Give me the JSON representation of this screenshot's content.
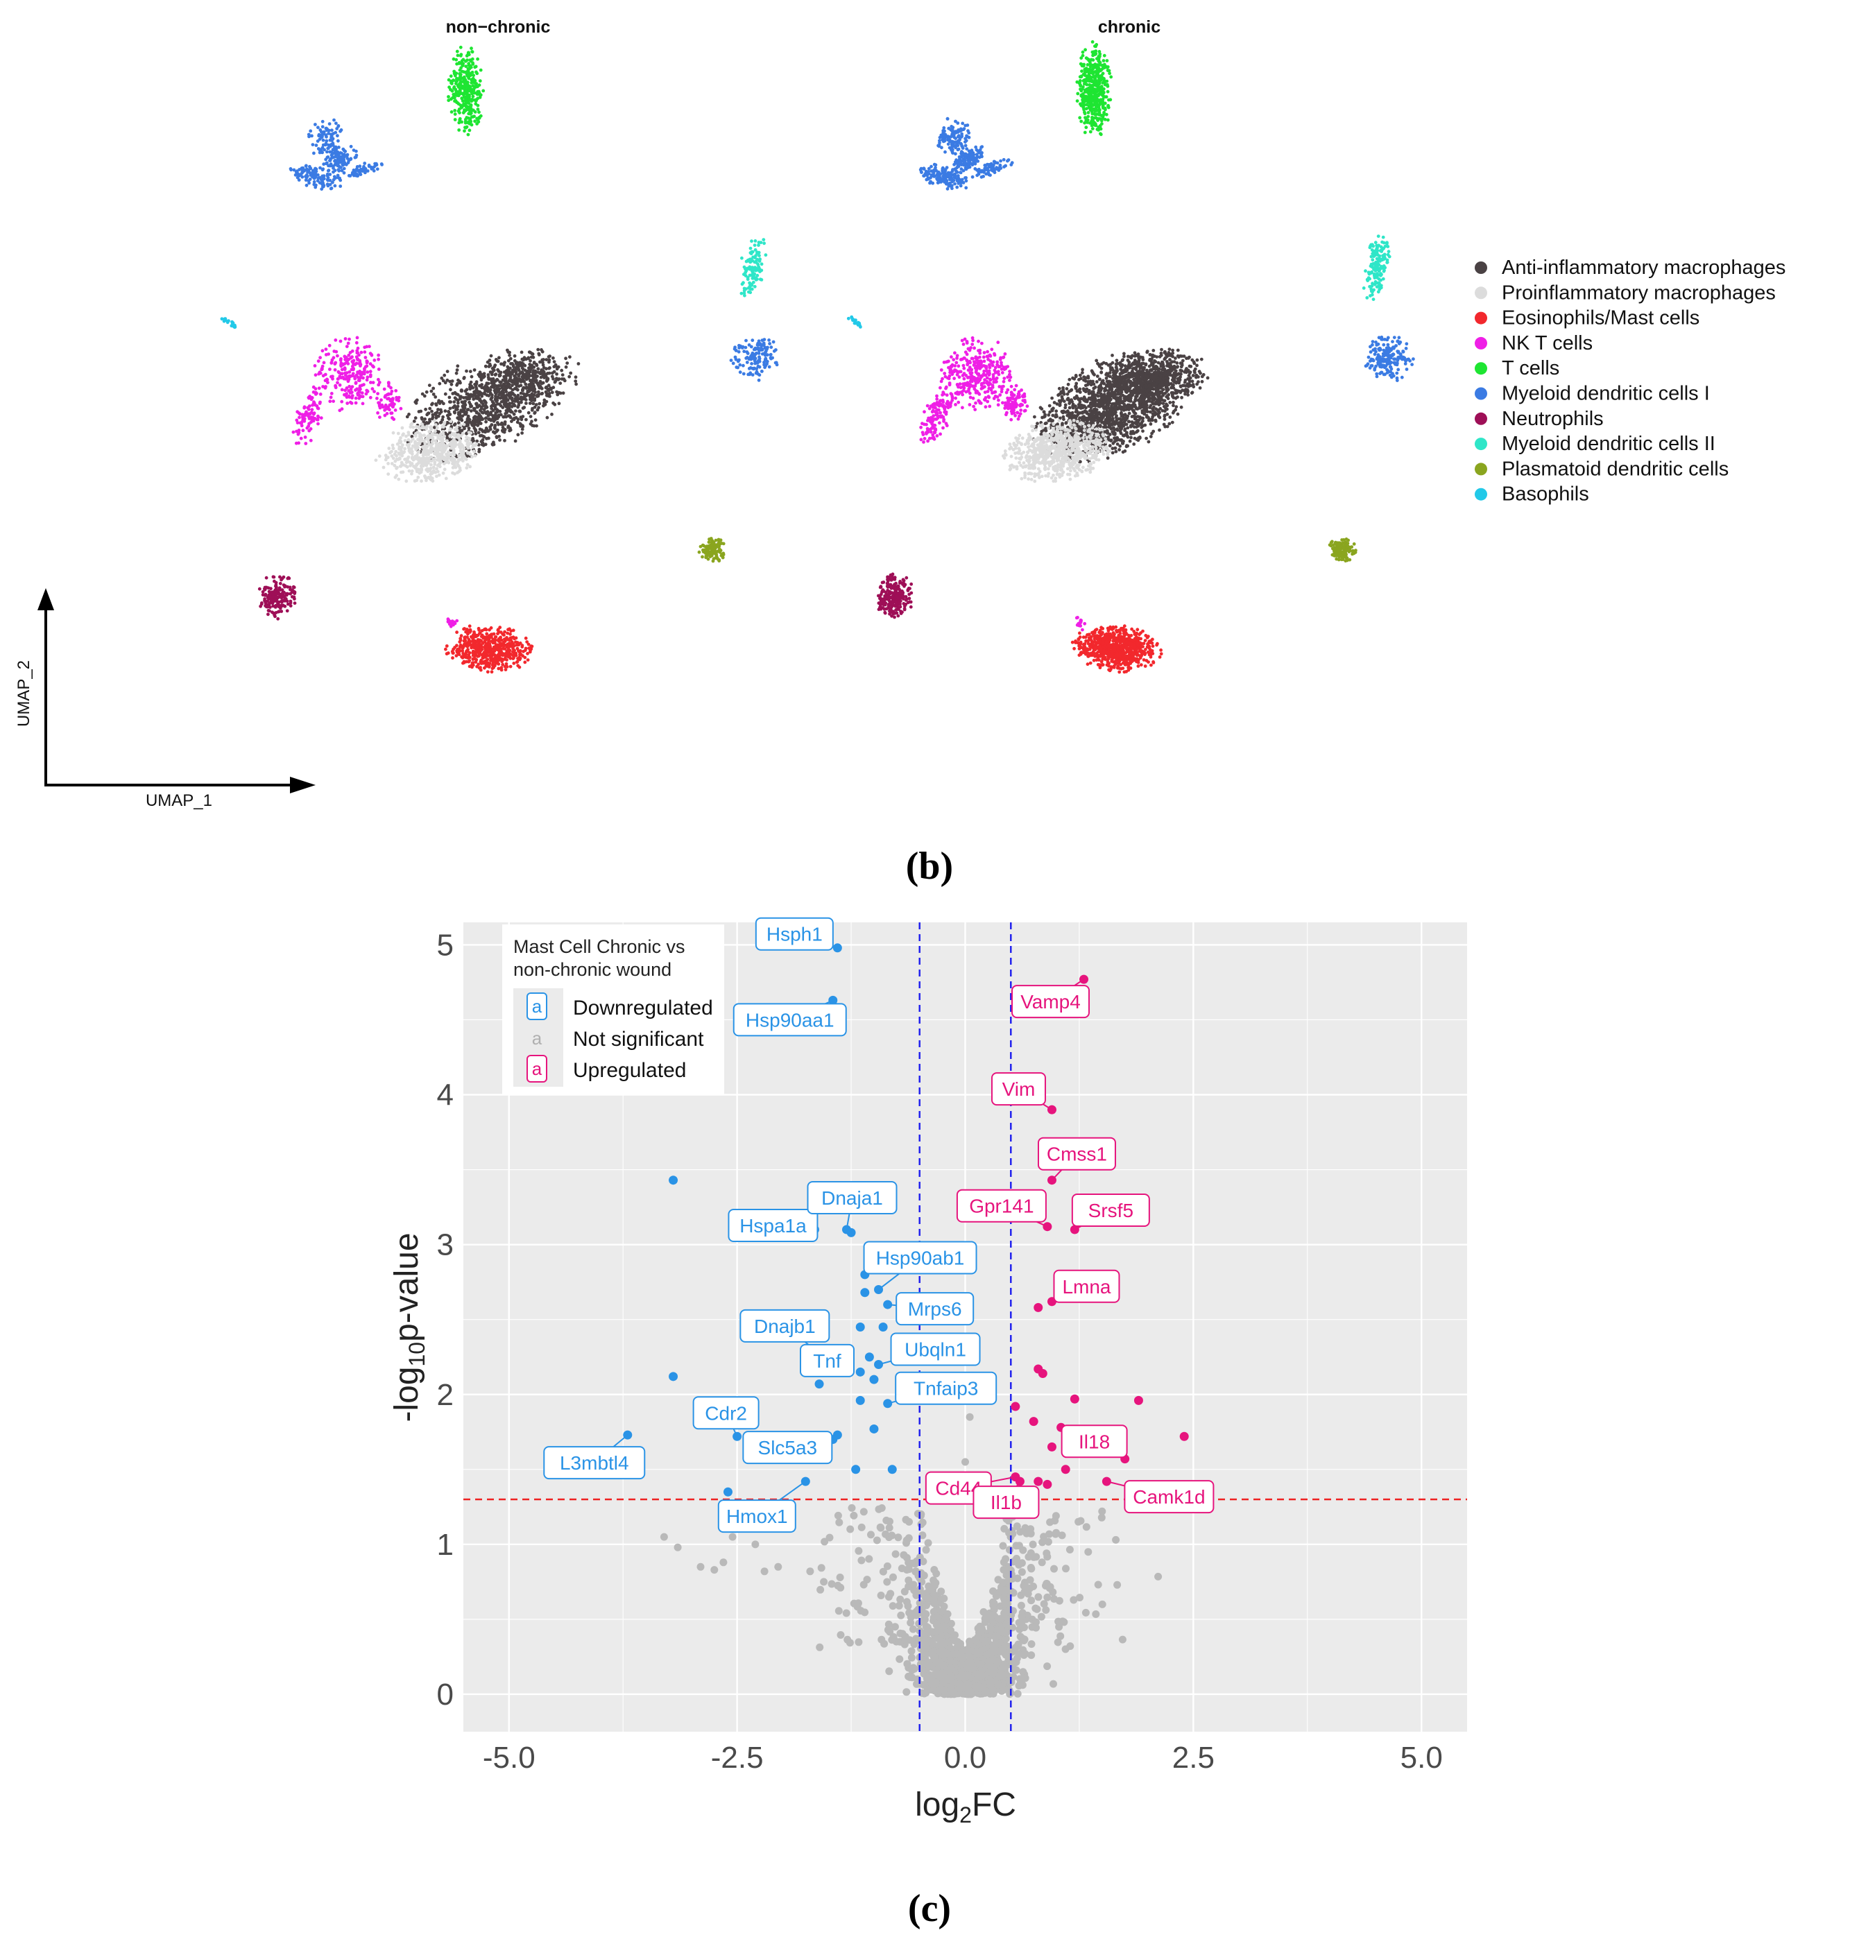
{
  "panel_labels": {
    "b": "(b)",
    "c": "(c)"
  },
  "colors": {
    "Anti-inflammatory macrophages": "#4a4244",
    "Proinflammatory macrophages": "#dcdcdc",
    "Eosinophils/Mast cells": "#f2282d",
    "NK T cells": "#ef1fe6",
    "T cells": "#1ee532",
    "Myeloid dendritic cells I": "#3b7be3",
    "Neutrophils": "#9e0f57",
    "Myeloid dendritic cells II": "#2fe6c8",
    "Plasmatoid dendritic cells": "#8aa51f",
    "Basophils": "#22c9e8",
    "down": "#2a93e6",
    "up": "#e6147d",
    "ns": "#b9b9b9",
    "panel_bg": "#ebebeb",
    "grid": "#ffffff",
    "vline": "#2222ee",
    "hline": "#ee2222"
  },
  "chart_data": [
    {
      "type": "scatter",
      "subtype": "umap",
      "panels": [
        "non−chronic",
        "chronic"
      ],
      "xlabel": "UMAP_1",
      "ylabel": "UMAP_2",
      "legend_position": "right",
      "legend": [
        "Anti-inflammatory macrophages",
        "Proinflammatory macrophages",
        "Eosinophils/Mast cells",
        "NK T cells",
        "T cells",
        "Myeloid dendritic cells I",
        "Neutrophils",
        "Myeloid dendritic cells II",
        "Plasmatoid dendritic cells",
        "Basophils"
      ],
      "cluster_centers": {
        "xlim": [
          0,
          10
        ],
        "ylim": [
          0,
          10
        ],
        "T cells": [
          5.1,
          9.3
        ],
        "Myeloid dendritic cells I": [
          1.9,
          8.5
        ],
        "Myeloid dendritic cells II": [
          7.4,
          6.5
        ],
        "Myeloid dendritic cells I (lower)": [
          7.5,
          5.5
        ],
        "Basophils": [
          0.2,
          6.0
        ],
        "NK T cells": [
          2.2,
          5.1
        ],
        "Anti-inflammatory macrophages": [
          4.6,
          4.8
        ],
        "Proinflammatory macrophages": [
          3.9,
          4.2
        ],
        "Plasmatoid dendritic cells": [
          7.2,
          2.8
        ],
        "Neutrophils": [
          1.0,
          2.1
        ],
        "Eosinophils/Mast cells": [
          5.5,
          1.5
        ]
      }
    },
    {
      "type": "scatter",
      "subtype": "volcano",
      "xlabel": "log2FC",
      "ylabel": "-log10p-value",
      "xlim": [
        -5.5,
        5.5
      ],
      "ylim": [
        -0.25,
        5.15
      ],
      "xticks": [
        -5.0,
        -2.5,
        0.0,
        2.5,
        5.0
      ],
      "xtick_labels": [
        "-5.0",
        "-2.5",
        "0.0",
        "2.5",
        "5.0"
      ],
      "yticks": [
        0,
        1,
        2,
        3,
        4,
        5
      ],
      "ytick_labels": [
        "0",
        "1",
        "2",
        "3",
        "4",
        "5"
      ],
      "fc_threshold": 0.5,
      "p_threshold": 1.3,
      "legend_title": "Mast Cell Chronic vs non-chronic wound",
      "legend_items": [
        {
          "key": "a",
          "label": "Downregulated"
        },
        {
          "key": "a",
          "label": "Not significant"
        },
        {
          "key": "a",
          "label": "Upregulated"
        }
      ],
      "downregulated": [
        {
          "x": -1.4,
          "y": 4.98,
          "label": "Hsph1"
        },
        {
          "x": -1.45,
          "y": 4.63,
          "label": "Hsp90aa1"
        },
        {
          "x": -3.2,
          "y": 3.43
        },
        {
          "x": -1.65,
          "y": 3.1,
          "label": "Hspa1a"
        },
        {
          "x": -1.3,
          "y": 3.1,
          "label": "Dnaja1"
        },
        {
          "x": -1.25,
          "y": 3.08
        },
        {
          "x": -1.1,
          "y": 2.8
        },
        {
          "x": -1.1,
          "y": 2.68
        },
        {
          "x": -0.95,
          "y": 2.7,
          "label": "Hsp90ab1"
        },
        {
          "x": -0.85,
          "y": 2.6,
          "label": "Mrps6"
        },
        {
          "x": -1.15,
          "y": 2.45
        },
        {
          "x": -0.9,
          "y": 2.45
        },
        {
          "x": -1.35,
          "y": 2.22
        },
        {
          "x": -1.4,
          "y": 2.18,
          "label": "Dnajb1"
        },
        {
          "x": -1.3,
          "y": 2.18,
          "label": "Tnf"
        },
        {
          "x": -1.05,
          "y": 2.25
        },
        {
          "x": -1.15,
          "y": 2.15
        },
        {
          "x": -0.95,
          "y": 2.2,
          "label": "Ubqln1"
        },
        {
          "x": -1.0,
          "y": 2.1
        },
        {
          "x": -1.6,
          "y": 2.07
        },
        {
          "x": -3.2,
          "y": 2.12
        },
        {
          "x": -1.15,
          "y": 1.96
        },
        {
          "x": -0.85,
          "y": 1.94,
          "label": "Tnfaip3"
        },
        {
          "x": -2.5,
          "y": 1.72,
          "label": "Cdr2"
        },
        {
          "x": -2.35,
          "y": 1.72
        },
        {
          "x": -1.4,
          "y": 1.73,
          "label": "Slc5a3"
        },
        {
          "x": -1.45,
          "y": 1.7
        },
        {
          "x": -3.7,
          "y": 1.73,
          "label": "L3mbtl4"
        },
        {
          "x": -1.0,
          "y": 1.77
        },
        {
          "x": -1.2,
          "y": 1.5
        },
        {
          "x": -0.8,
          "y": 1.5
        },
        {
          "x": -1.75,
          "y": 1.42,
          "label": "Hmox1"
        },
        {
          "x": -2.6,
          "y": 1.35
        },
        {
          "x": -2.1,
          "y": 1.12
        }
      ],
      "upregulated": [
        {
          "x": 1.3,
          "y": 4.77,
          "label": "Vamp4"
        },
        {
          "x": 0.95,
          "y": 3.9,
          "label": "Vim"
        },
        {
          "x": 0.95,
          "y": 3.43,
          "label": "Cmss1"
        },
        {
          "x": 0.9,
          "y": 3.12,
          "label": "Gpr141"
        },
        {
          "x": 1.2,
          "y": 3.1,
          "label": "Srsf5"
        },
        {
          "x": 0.95,
          "y": 2.62,
          "label": "Lmna"
        },
        {
          "x": 0.8,
          "y": 2.58
        },
        {
          "x": 0.8,
          "y": 2.17
        },
        {
          "x": 0.85,
          "y": 2.14
        },
        {
          "x": 1.2,
          "y": 1.97
        },
        {
          "x": 1.9,
          "y": 1.96
        },
        {
          "x": 0.55,
          "y": 1.92
        },
        {
          "x": 0.75,
          "y": 1.82
        },
        {
          "x": 1.05,
          "y": 1.78,
          "label": "Il18"
        },
        {
          "x": 2.4,
          "y": 1.72
        },
        {
          "x": 0.95,
          "y": 1.65
        },
        {
          "x": 1.75,
          "y": 1.57
        },
        {
          "x": 0.55,
          "y": 1.45,
          "label": "Cd44"
        },
        {
          "x": 0.6,
          "y": 1.42,
          "label": "Il1b"
        },
        {
          "x": 1.1,
          "y": 1.5
        },
        {
          "x": 0.8,
          "y": 1.42
        },
        {
          "x": 0.9,
          "y": 1.4
        },
        {
          "x": 1.55,
          "y": 1.42,
          "label": "Camk1d"
        }
      ]
    }
  ]
}
